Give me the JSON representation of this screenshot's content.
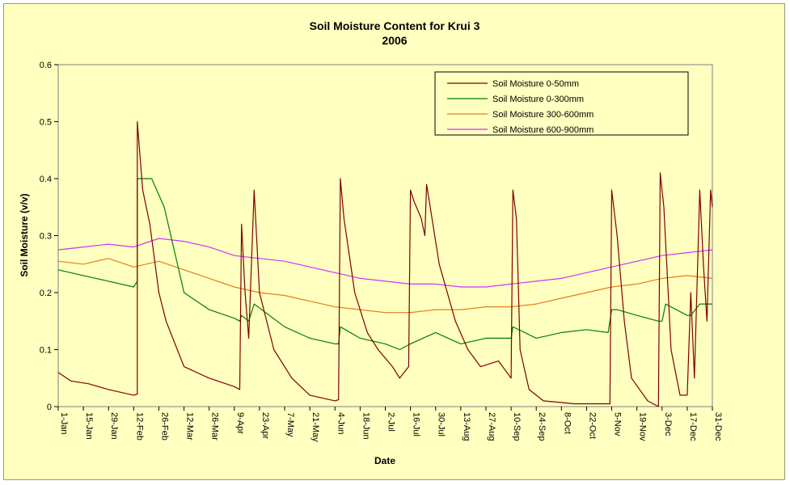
{
  "chart_data": {
    "type": "line",
    "title": "Soil Moisture Content for Krui 3",
    "subtitle": "2006",
    "xlabel": "Date",
    "ylabel": "Soil Moisture (v/v)",
    "ylim": [
      0,
      0.6
    ],
    "yticks": [
      "0",
      "0.1",
      "0.2",
      "0.3",
      "0.4",
      "0.5",
      "0.6"
    ],
    "xlim": [
      "2006-01-01",
      "2006-12-31"
    ],
    "xticks": [
      {
        "label": "1-Jan",
        "date": "2006-01-01"
      },
      {
        "label": "15-Jan",
        "date": "2006-01-15"
      },
      {
        "label": "29-Jan",
        "date": "2006-01-29"
      },
      {
        "label": "12-Feb",
        "date": "2006-02-12"
      },
      {
        "label": "26-Feb",
        "date": "2006-02-26"
      },
      {
        "label": "12-Mar",
        "date": "2006-03-12"
      },
      {
        "label": "26-Mar",
        "date": "2006-03-26"
      },
      {
        "label": "9-Apr",
        "date": "2006-04-09"
      },
      {
        "label": "23-Apr",
        "date": "2006-04-23"
      },
      {
        "label": "7-May",
        "date": "2006-05-07"
      },
      {
        "label": "21-May",
        "date": "2006-05-21"
      },
      {
        "label": "4-Jun",
        "date": "2006-06-04"
      },
      {
        "label": "18-Jun",
        "date": "2006-06-18"
      },
      {
        "label": "2-Jul",
        "date": "2006-07-02"
      },
      {
        "label": "16-Jul",
        "date": "2006-07-16"
      },
      {
        "label": "30-Jul",
        "date": "2006-07-30"
      },
      {
        "label": "13-Aug",
        "date": "2006-08-13"
      },
      {
        "label": "27-Aug",
        "date": "2006-08-27"
      },
      {
        "label": "10-Sep",
        "date": "2006-09-10"
      },
      {
        "label": "24-Sep",
        "date": "2006-09-24"
      },
      {
        "label": "8-Oct",
        "date": "2006-10-08"
      },
      {
        "label": "22-Oct",
        "date": "2006-10-22"
      },
      {
        "label": "5-Nov",
        "date": "2006-11-05"
      },
      {
        "label": "19-Nov",
        "date": "2006-11-19"
      },
      {
        "label": "3-Dec",
        "date": "2006-12-03"
      },
      {
        "label": "17-Dec",
        "date": "2006-12-17"
      },
      {
        "label": "31-Dec",
        "date": "2006-12-31"
      }
    ],
    "grid": false,
    "legend_position": "top-right",
    "background_color": "#ffffc0",
    "series": [
      {
        "name": "Soil Moisture 0-50mm",
        "color": "#7f0000",
        "x": [
          "2006-01-01",
          "2006-01-08",
          "2006-01-18",
          "2006-01-29",
          "2006-02-12",
          "2006-02-14",
          "2006-02-14",
          "2006-02-17",
          "2006-02-21",
          "2006-02-26",
          "2006-03-02",
          "2006-03-12",
          "2006-03-26",
          "2006-04-09",
          "2006-04-12",
          "2006-04-13",
          "2006-04-15",
          "2006-04-17",
          "2006-04-20",
          "2006-04-23",
          "2006-05-01",
          "2006-05-11",
          "2006-05-21",
          "2006-06-04",
          "2006-06-06",
          "2006-06-07",
          "2006-06-09",
          "2006-06-15",
          "2006-06-22",
          "2006-06-28",
          "2006-07-06",
          "2006-07-10",
          "2006-07-15",
          "2006-07-16",
          "2006-07-18",
          "2006-07-22",
          "2006-07-24",
          "2006-07-25",
          "2006-08-01",
          "2006-08-10",
          "2006-08-17",
          "2006-08-24",
          "2006-09-03",
          "2006-09-10",
          "2006-09-11",
          "2006-09-13",
          "2006-09-15",
          "2006-09-20",
          "2006-09-28",
          "2006-10-15",
          "2006-11-03",
          "2006-11-04",
          "2006-11-05",
          "2006-11-08",
          "2006-11-12",
          "2006-11-16",
          "2006-11-25",
          "2006-12-01",
          "2006-12-02",
          "2006-12-04",
          "2006-12-08",
          "2006-12-13",
          "2006-12-17",
          "2006-12-19",
          "2006-12-21",
          "2006-12-24",
          "2006-12-26",
          "2006-12-28",
          "2006-12-30",
          "2006-12-31"
        ],
        "values": [
          0.06,
          0.045,
          0.04,
          0.03,
          0.02,
          0.022,
          0.5,
          0.38,
          0.32,
          0.2,
          0.15,
          0.07,
          0.05,
          0.035,
          0.03,
          0.32,
          0.2,
          0.12,
          0.38,
          0.2,
          0.1,
          0.05,
          0.02,
          0.01,
          0.012,
          0.4,
          0.33,
          0.2,
          0.13,
          0.1,
          0.07,
          0.05,
          0.07,
          0.38,
          0.36,
          0.33,
          0.3,
          0.39,
          0.25,
          0.15,
          0.1,
          0.07,
          0.08,
          0.05,
          0.38,
          0.33,
          0.1,
          0.03,
          0.01,
          0.005,
          0.005,
          0.005,
          0.38,
          0.3,
          0.15,
          0.05,
          0.01,
          0.0,
          0.41,
          0.35,
          0.1,
          0.02,
          0.02,
          0.2,
          0.05,
          0.38,
          0.25,
          0.15,
          0.38,
          0.35
        ]
      },
      {
        "name": "Soil Moisture 0-300mm",
        "color": "#007f00",
        "x": [
          "2006-01-01",
          "2006-01-15",
          "2006-01-29",
          "2006-02-12",
          "2006-02-14",
          "2006-02-14",
          "2006-02-22",
          "2006-03-01",
          "2006-03-12",
          "2006-03-26",
          "2006-04-09",
          "2006-04-12",
          "2006-04-13",
          "2006-04-17",
          "2006-04-20",
          "2006-05-07",
          "2006-05-21",
          "2006-06-04",
          "2006-06-06",
          "2006-06-07",
          "2006-06-18",
          "2006-07-02",
          "2006-07-10",
          "2006-07-16",
          "2006-07-30",
          "2006-08-13",
          "2006-08-27",
          "2006-09-10",
          "2006-09-11",
          "2006-09-24",
          "2006-10-08",
          "2006-10-22",
          "2006-11-03",
          "2006-11-05",
          "2006-11-08",
          "2006-11-19",
          "2006-12-01",
          "2006-12-03",
          "2006-12-05",
          "2006-12-17",
          "2006-12-19",
          "2006-12-24",
          "2006-12-31"
        ],
        "values": [
          0.24,
          0.23,
          0.22,
          0.21,
          0.22,
          0.4,
          0.4,
          0.35,
          0.2,
          0.17,
          0.155,
          0.15,
          0.16,
          0.15,
          0.18,
          0.14,
          0.12,
          0.11,
          0.11,
          0.14,
          0.12,
          0.11,
          0.1,
          0.11,
          0.13,
          0.11,
          0.12,
          0.12,
          0.14,
          0.12,
          0.13,
          0.135,
          0.13,
          0.17,
          0.17,
          0.16,
          0.15,
          0.15,
          0.18,
          0.16,
          0.16,
          0.18,
          0.18
        ]
      },
      {
        "name": "Soil Moisture 300-600mm",
        "color": "#e87c1c",
        "x": [
          "2006-01-01",
          "2006-01-15",
          "2006-01-29",
          "2006-02-12",
          "2006-02-26",
          "2006-03-12",
          "2006-03-26",
          "2006-04-09",
          "2006-04-23",
          "2006-05-07",
          "2006-05-21",
          "2006-06-04",
          "2006-06-18",
          "2006-07-02",
          "2006-07-16",
          "2006-07-30",
          "2006-08-13",
          "2006-08-27",
          "2006-09-10",
          "2006-09-24",
          "2006-10-08",
          "2006-10-22",
          "2006-11-05",
          "2006-11-19",
          "2006-12-03",
          "2006-12-17",
          "2006-12-31"
        ],
        "values": [
          0.255,
          0.25,
          0.26,
          0.245,
          0.255,
          0.24,
          0.225,
          0.21,
          0.2,
          0.195,
          0.185,
          0.175,
          0.17,
          0.165,
          0.165,
          0.17,
          0.17,
          0.175,
          0.175,
          0.18,
          0.19,
          0.2,
          0.21,
          0.215,
          0.225,
          0.23,
          0.225
        ]
      },
      {
        "name": "Soil Moisture 600-900mm",
        "color": "#cc33ff",
        "x": [
          "2006-01-01",
          "2006-01-15",
          "2006-01-29",
          "2006-02-12",
          "2006-02-26",
          "2006-03-12",
          "2006-03-26",
          "2006-04-09",
          "2006-04-23",
          "2006-05-07",
          "2006-05-21",
          "2006-06-04",
          "2006-06-18",
          "2006-07-02",
          "2006-07-16",
          "2006-07-30",
          "2006-08-13",
          "2006-08-27",
          "2006-09-10",
          "2006-09-24",
          "2006-10-08",
          "2006-10-22",
          "2006-11-05",
          "2006-11-19",
          "2006-12-03",
          "2006-12-17",
          "2006-12-31"
        ],
        "values": [
          0.275,
          0.28,
          0.285,
          0.28,
          0.295,
          0.29,
          0.28,
          0.265,
          0.26,
          0.255,
          0.245,
          0.235,
          0.225,
          0.22,
          0.215,
          0.215,
          0.21,
          0.21,
          0.215,
          0.22,
          0.225,
          0.235,
          0.245,
          0.255,
          0.265,
          0.27,
          0.275
        ]
      }
    ]
  }
}
